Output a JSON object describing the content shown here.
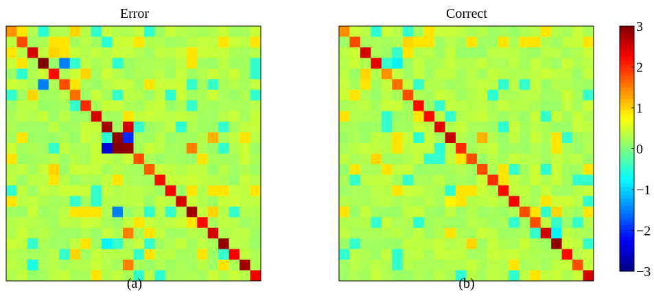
{
  "figure": {
    "panels": [
      {
        "title": "Error",
        "caption": "(a)"
      },
      {
        "title": "Correct",
        "caption": "(b)"
      }
    ],
    "colorbar": {
      "ticks": [
        "3",
        "2",
        "1",
        "0",
        "−1",
        "−2",
        "−3"
      ]
    }
  },
  "chart_data": [
    {
      "type": "heatmap",
      "title": "Error",
      "caption": "(a)",
      "n": 24,
      "clim": [
        -3,
        3
      ],
      "colormap": "jet",
      "xticks": [],
      "yticks": [],
      "background_value": 0.3,
      "diagonal": [
        1.4,
        1.8,
        2.5,
        3.0,
        2.2,
        1.8,
        1.6,
        2.0,
        2.5,
        2.8,
        2.9,
        2.9,
        1.8,
        1.7,
        2.2,
        2.3,
        2.5,
        2.8,
        2.2,
        2.5,
        2.9,
        2.3,
        2.8,
        2.3
      ],
      "off_diagonal": [
        [
          0,
          3,
          -0.5
        ],
        [
          0,
          6,
          1.0
        ],
        [
          1,
          9,
          -0.5
        ],
        [
          2,
          4,
          1.0
        ],
        [
          3,
          5,
          -1.5
        ],
        [
          3,
          10,
          -0.5
        ],
        [
          4,
          1,
          -0.5
        ],
        [
          4,
          7,
          1.0
        ],
        [
          5,
          3,
          -1.5
        ],
        [
          6,
          2,
          1.0
        ],
        [
          6,
          15,
          -0.5
        ],
        [
          9,
          11,
          2.5
        ],
        [
          9,
          16,
          -0.5
        ],
        [
          10,
          11,
          -2.0
        ],
        [
          10,
          9,
          -0.5
        ],
        [
          10,
          19,
          1.2
        ],
        [
          11,
          9,
          -2.5
        ],
        [
          11,
          10,
          3.0
        ],
        [
          11,
          17,
          1.5
        ],
        [
          13,
          4,
          1.0
        ],
        [
          17,
          10,
          -1.5
        ],
        [
          17,
          19,
          1.0
        ],
        [
          18,
          12,
          0.9
        ],
        [
          19,
          11,
          1.5
        ],
        [
          20,
          9,
          -0.8
        ],
        [
          21,
          6,
          1.0
        ],
        [
          22,
          2,
          -0.6
        ],
        [
          22,
          11,
          1.5
        ],
        [
          23,
          14,
          -0.5
        ]
      ]
    },
    {
      "type": "heatmap",
      "title": "Correct",
      "caption": "(b)",
      "n": 24,
      "clim": [
        -3,
        3
      ],
      "colormap": "jet",
      "xticks": [],
      "yticks": [],
      "background_value": 0.3,
      "diagonal": [
        1.4,
        1.8,
        2.5,
        2.4,
        1.4,
        1.6,
        1.8,
        2.2,
        2.2,
        2.4,
        2.6,
        2.0,
        1.8,
        1.8,
        2.0,
        2.2,
        2.3,
        1.8,
        1.8,
        2.5,
        2.9,
        2.2,
        1.8,
        2.5
      ],
      "off_diagonal": [
        [
          0,
          3,
          -0.5
        ],
        [
          1,
          6,
          1.0
        ],
        [
          3,
          5,
          -0.8
        ],
        [
          4,
          2,
          1.0
        ],
        [
          6,
          14,
          -0.5
        ],
        [
          9,
          15,
          -0.5
        ],
        [
          10,
          7,
          -0.5
        ],
        [
          10,
          13,
          1.2
        ],
        [
          11,
          9,
          -0.5
        ],
        [
          12,
          3,
          1.0
        ],
        [
          13,
          19,
          -0.5
        ],
        [
          16,
          10,
          0.8
        ],
        [
          17,
          20,
          1.0
        ],
        [
          18,
          7,
          -0.5
        ],
        [
          19,
          20,
          -0.8
        ],
        [
          20,
          12,
          1.0
        ],
        [
          21,
          5,
          -0.5
        ],
        [
          22,
          16,
          0.9
        ],
        [
          23,
          11,
          -0.5
        ]
      ]
    }
  ]
}
